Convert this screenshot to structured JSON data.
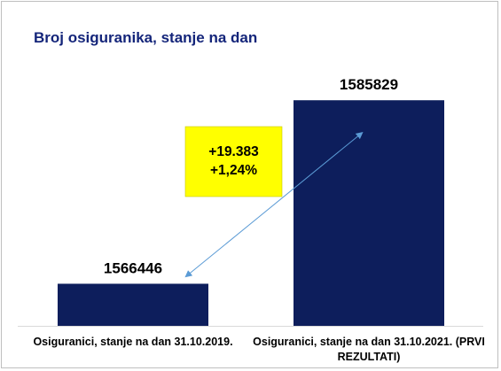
{
  "chart_data": {
    "type": "bar",
    "title": "Broj osiguranika, stanje na dan",
    "categories": [
      [
        "Osiguranici, stanje na dan 31.10.2019."
      ],
      [
        "Osiguranici, stanje na dan 31.10.2021. (PRVI",
        "REZULTATI)"
      ]
    ],
    "values": [
      1566446,
      1585829
    ],
    "value_labels": [
      "1566446",
      "1585829"
    ],
    "ylim": [
      1562000,
      1588000
    ],
    "grid": false,
    "annotation": {
      "lines": [
        "+19.383",
        "+1,24%"
      ],
      "box_color": "#ffff00",
      "arrow_color": "#5b9bd5"
    },
    "colors": {
      "bar": "#0d1e5c",
      "title": "#14257a",
      "text": "#000000",
      "axis": "#d9d9d9"
    }
  }
}
